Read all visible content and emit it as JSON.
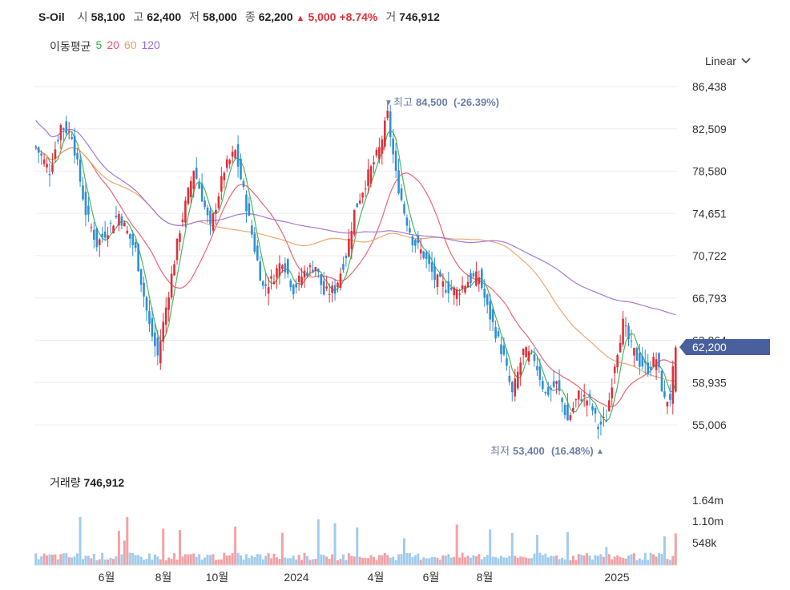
{
  "header": {
    "name": "S-Oil",
    "open_label": "시",
    "open": "58,100",
    "high_label": "고",
    "high": "62,400",
    "low_label": "저",
    "low": "58,000",
    "close_label": "종",
    "close": "62,200",
    "change_arrow": "▲",
    "change": "5,000",
    "change_pct": "+8.74%",
    "volume_label": "거",
    "volume": "746,912"
  },
  "moving_average": {
    "label": "이동평균",
    "periods": [
      {
        "label": "5",
        "color": "#3cae4a"
      },
      {
        "label": "20",
        "color": "#e8546a"
      },
      {
        "label": "60",
        "color": "#e8a060"
      },
      {
        "label": "120",
        "color": "#9a6ad8"
      }
    ]
  },
  "scale_selector": {
    "label": "Linear",
    "icon": "chevron-down-icon"
  },
  "price_axis": {
    "ticks": [
      "86,438",
      "82,509",
      "78,580",
      "74,651",
      "70,722",
      "66,793",
      "62,864",
      "58,935",
      "55,006"
    ]
  },
  "current_price_tag": {
    "label": "62,200",
    "color": "#4a5f9e"
  },
  "annotations": {
    "high": {
      "marker": "▼",
      "label": "최고",
      "value": "84,500",
      "pct": "(-26.39%)"
    },
    "low": {
      "label": "최저",
      "value": "53,400",
      "pct": "(16.48%)",
      "marker": "▲"
    }
  },
  "volume_panel": {
    "label": "거래량",
    "value": "746,912",
    "ticks": [
      "1.64m",
      "1.10m",
      "548k"
    ]
  },
  "time_axis": {
    "labels": [
      "6월",
      "8월",
      "10월",
      "2024",
      "4월",
      "6월",
      "8월",
      "2025"
    ]
  },
  "colors": {
    "up": "#e0303a",
    "down": "#2f8fd6",
    "grid": "#eeeeee"
  },
  "chart_data": {
    "type": "candlestick",
    "y_range": [
      53000,
      87000
    ],
    "volume_range": [
      0,
      2000000
    ],
    "price_path": [
      [
        0,
        80800
      ],
      [
        5,
        78600
      ],
      [
        9,
        82800
      ],
      [
        13,
        82000
      ],
      [
        18,
        74800
      ],
      [
        22,
        71800
      ],
      [
        30,
        74600
      ],
      [
        36,
        71200
      ],
      [
        41,
        64200
      ],
      [
        44,
        61400
      ],
      [
        48,
        67400
      ],
      [
        52,
        73200
      ],
      [
        57,
        78800
      ],
      [
        60,
        76200
      ],
      [
        63,
        73200
      ],
      [
        68,
        78700
      ],
      [
        72,
        80400
      ],
      [
        76,
        75400
      ],
      [
        79,
        71400
      ],
      [
        82,
        67800
      ],
      [
        85,
        68400
      ],
      [
        89,
        70400
      ],
      [
        93,
        67600
      ],
      [
        97,
        69200
      ],
      [
        101,
        69800
      ],
      [
        104,
        67200
      ],
      [
        108,
        67600
      ],
      [
        112,
        70800
      ],
      [
        115,
        74800
      ],
      [
        120,
        78200
      ],
      [
        124,
        80600
      ],
      [
        127,
        83800
      ],
      [
        130,
        78200
      ],
      [
        133,
        74800
      ],
      [
        136,
        72200
      ],
      [
        140,
        70800
      ],
      [
        144,
        68600
      ],
      [
        148,
        67800
      ],
      [
        152,
        67400
      ],
      [
        156,
        68400
      ],
      [
        160,
        68800
      ],
      [
        163,
        65800
      ],
      [
        166,
        63600
      ],
      [
        169,
        61200
      ],
      [
        172,
        57800
      ],
      [
        176,
        61800
      ],
      [
        180,
        61200
      ],
      [
        184,
        57800
      ],
      [
        188,
        58800
      ],
      [
        192,
        55400
      ],
      [
        196,
        57800
      ],
      [
        200,
        57200
      ],
      [
        203,
        54800
      ],
      [
        206,
        55600
      ],
      [
        209,
        60800
      ],
      [
        212,
        64400
      ],
      [
        215,
        62200
      ],
      [
        218,
        60800
      ],
      [
        221,
        60200
      ],
      [
        224,
        61200
      ],
      [
        227,
        57200
      ],
      [
        229,
        57600
      ],
      [
        231,
        62200
      ]
    ],
    "volume_levels": [
      0.08,
      0.12,
      0.45,
      0.18,
      0.1
    ]
  }
}
